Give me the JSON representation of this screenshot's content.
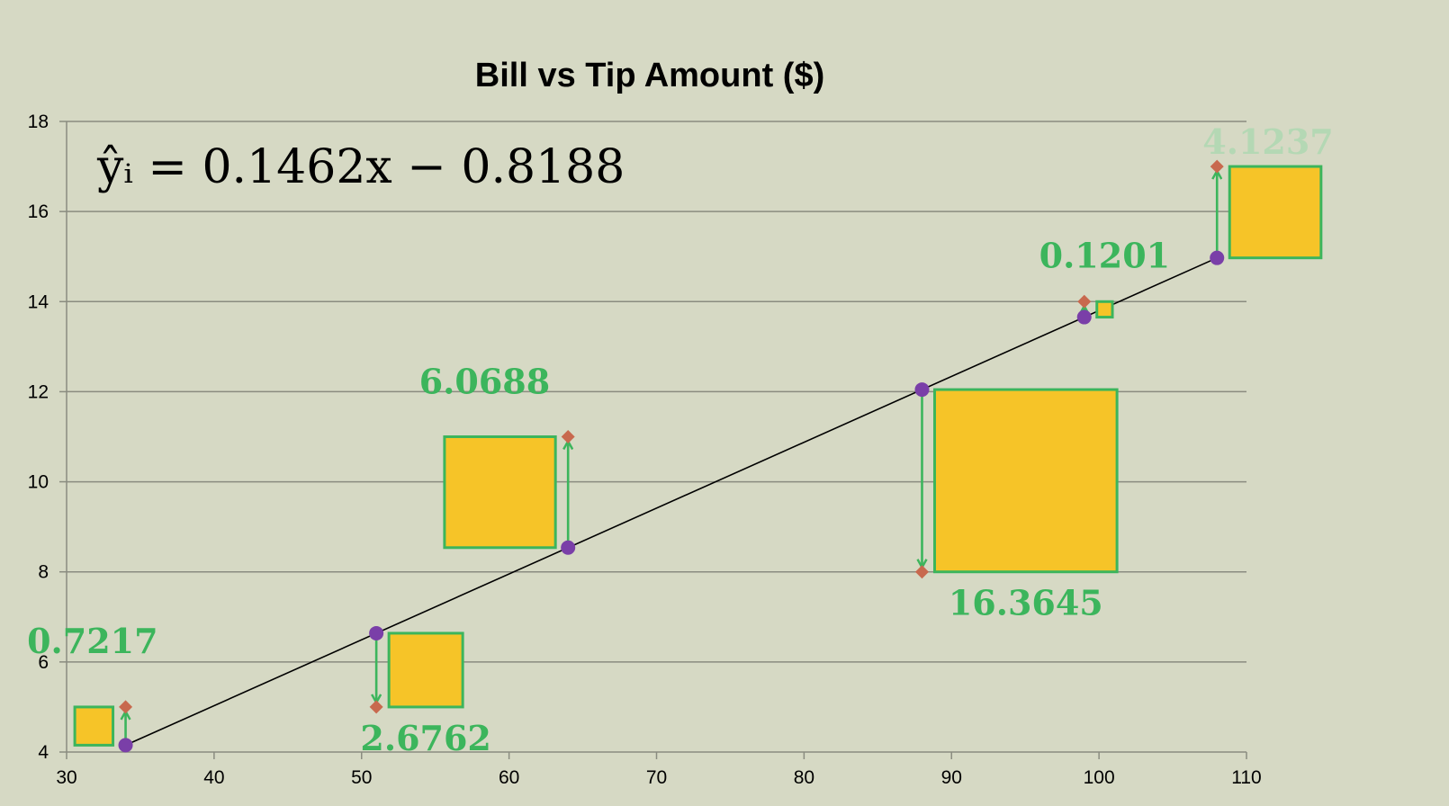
{
  "chart_data": {
    "type": "scatter",
    "title": "Bill vs Tip Amount ($)",
    "equation": "ŷᵢ = 0.1462x − 0.8188",
    "regression": {
      "slope": 0.1462,
      "intercept": -0.8188
    },
    "xlim": [
      30,
      110
    ],
    "ylim": [
      4,
      18
    ],
    "xticks": [
      "30",
      "40",
      "50",
      "60",
      "70",
      "80",
      "90",
      "100",
      "110"
    ],
    "yticks": [
      "4",
      "6",
      "8",
      "10",
      "12",
      "14",
      "16",
      "18"
    ],
    "grid": true,
    "points": [
      {
        "x": 34,
        "y": 5,
        "squared_residual": "0.7217",
        "label_pos": "above-left"
      },
      {
        "x": 51,
        "y": 5,
        "squared_residual": "2.6762",
        "label_pos": "below-right"
      },
      {
        "x": 64,
        "y": 11,
        "squared_residual": "6.0688",
        "label_pos": "above-left"
      },
      {
        "x": 88,
        "y": 8,
        "squared_residual": "16.3645",
        "label_pos": "below-right"
      },
      {
        "x": 99,
        "y": 14,
        "squared_residual": "0.1201",
        "label_pos": "above"
      },
      {
        "x": 108,
        "y": 17,
        "squared_residual": "4.1237",
        "label_pos": "above-right",
        "label_faded": true
      }
    ],
    "colors": {
      "background": "#d6d9c4",
      "gridline": "#8a8c80",
      "regression_line": "#000000",
      "fitted_point": "#7a3fa8",
      "observed_point": "#c8694e",
      "residual_arrow": "#3cb55c",
      "square_fill": "#f6c428",
      "square_stroke": "#3cb55c",
      "label": "#3cb55c",
      "label_faded": "#b4d8b4"
    }
  }
}
